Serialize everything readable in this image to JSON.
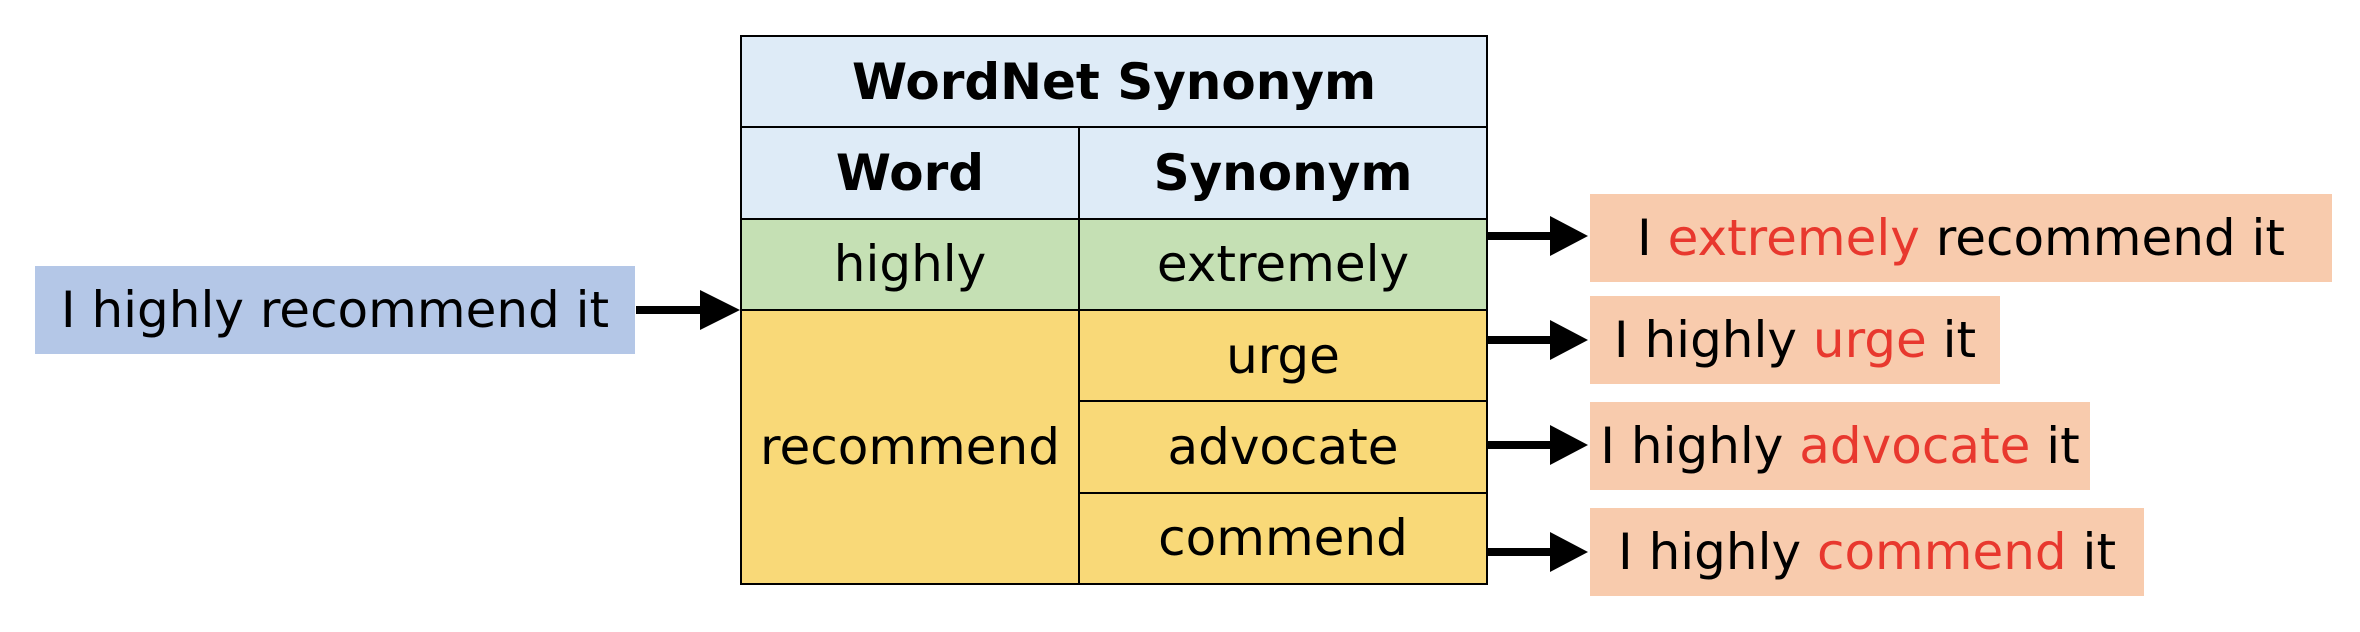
{
  "input": {
    "text": "I highly recommend it"
  },
  "table": {
    "title": "WordNet Synonym",
    "col_word": "Word",
    "col_synonym": "Synonym",
    "rows": [
      {
        "word": "highly",
        "synonyms": [
          "extremely"
        ]
      },
      {
        "word": "recommend",
        "synonyms": [
          "urge",
          "advocate",
          "commend"
        ]
      }
    ]
  },
  "outputs": [
    {
      "before": "I ",
      "replaced": "extremely",
      "after": " recommend it"
    },
    {
      "before": "I highly ",
      "replaced": "urge",
      "after": " it"
    },
    {
      "before": "I highly ",
      "replaced": "advocate",
      "after": " it"
    },
    {
      "before": "I highly ",
      "replaced": "commend",
      "after": " it"
    }
  ],
  "colors": {
    "input_fill": "#b4c7e7",
    "header_fill": "#deebf7",
    "highly_fill": "#c5e0b4",
    "recommend_fill": "#f9d978",
    "output_fill": "#f8cbad",
    "replaced_text": "#e8382e"
  }
}
